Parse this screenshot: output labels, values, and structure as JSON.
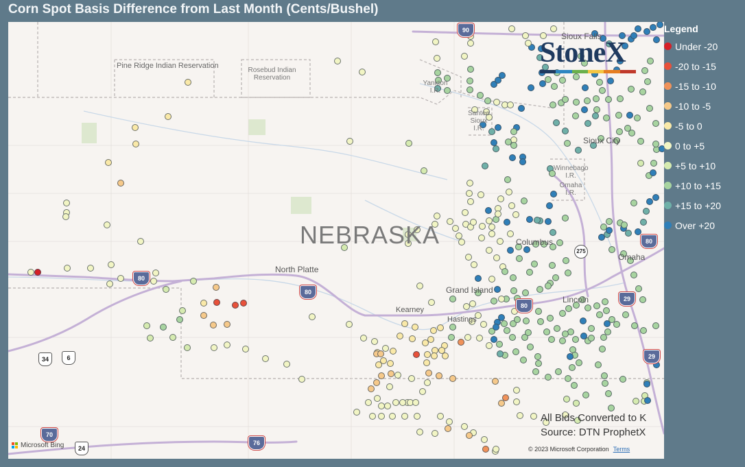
{
  "title": "Corn Spot Basis Difference from Last Month (Cents/Bushel)",
  "legend": {
    "title": "Legend",
    "items": [
      {
        "label": "Under -20",
        "color": "#d62027"
      },
      {
        "label": "-20 to -15",
        "color": "#e8513a"
      },
      {
        "label": "-15 to -10",
        "color": "#f0925a"
      },
      {
        "label": "-10 to -5",
        "color": "#f6c98a"
      },
      {
        "label": "-5 to 0",
        "color": "#fae9a8"
      },
      {
        "label": "0 to +5",
        "color": "#f2f5c4"
      },
      {
        "label": "+5 to +10",
        "color": "#d6ebb0"
      },
      {
        "label": "+10 to +15",
        "color": "#a8d4a0"
      },
      {
        "label": "+15 to +20",
        "color": "#6fb0a8"
      },
      {
        "label": "Over +20",
        "color": "#2f7fb8"
      }
    ]
  },
  "map": {
    "state_label": "NEBRASKA",
    "cities": {
      "north_platte": "North Platte",
      "grand_island": "Grand Island",
      "kearney": "Kearney",
      "hastings": "Hastings",
      "columbus": "Columbus",
      "lincoln": "Lincoln",
      "omaha": "Omaha",
      "sioux_city": "Sioux City",
      "sioux_falls": "Sioux Falls"
    },
    "reservations": {
      "pine_ridge": "Pine Ridge Indian Reservation",
      "rosebud": "Rosebud Indian Reservation",
      "yankton": "Yankton I.R.",
      "santee": "Santee Sioux I.R.",
      "winnebago": "Winnebago I.R.",
      "omaha_ir": "Omaha I.R."
    },
    "road_shields": {
      "i80_west": "80",
      "i80_mid": "80",
      "i80_east": "80",
      "i80_omaha": "80",
      "i29_north": "29",
      "i29_mid": "29",
      "i29_south": "29",
      "i76": "76",
      "i70": "70",
      "i90": "90",
      "us34": "34",
      "us6": "6",
      "us275": "275",
      "us24": "24"
    }
  },
  "logo": {
    "text": "StoneX",
    "bar_colors": [
      "#1f3a5f",
      "#2e86c1",
      "#6ab04c",
      "#f4c542",
      "#e67e22",
      "#c0392b"
    ]
  },
  "annotation": {
    "line1": "All Bids Converted to K",
    "line2": "Source: DTN ProphetX"
  },
  "attribution": {
    "bing": "Microsoft Bing",
    "copyright": "© 2023 Microsoft Corporation",
    "terms": "Terms"
  }
}
